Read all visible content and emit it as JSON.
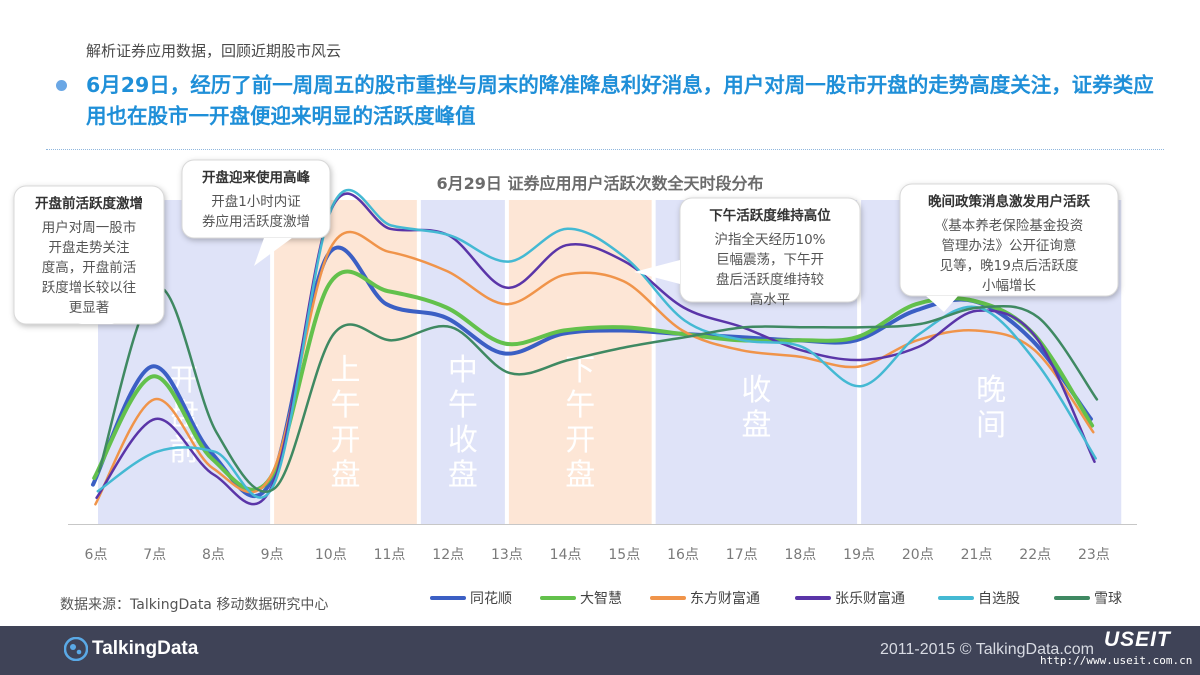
{
  "header": {
    "subtitle": "解析证券应用数据，回顾近期股市风云",
    "headline": "6月29日，经历了前一周周五的股市重挫与周末的降准降息利好消息，用户对周一股市开盘的走势高度关注，证券类应用也在股市一开盘便迎来明显的活跃度峰值"
  },
  "callouts": [
    {
      "title": "开盘前活跃度激增",
      "lines": [
        "用户对周一股市",
        "开盘走势关注",
        "度高，开盘前活",
        "跃度增长较以往",
        "更显著"
      ]
    },
    {
      "title": "开盘迎来使用高峰",
      "lines": [
        "开盘1小时内证",
        "券应用活跃度激增"
      ]
    },
    {
      "title": "下午活跃度维持高位",
      "lines": [
        "沪指全天经历10%",
        "巨幅震荡，下午开",
        "盘后活跃度维持较",
        "高水平"
      ]
    },
    {
      "title": "晚间政策消息激发用户活跃",
      "lines": [
        "《基本养老保险基金投资",
        "管理办法》公开征询意",
        "见等，晚19点后活跃度",
        "小幅增长"
      ]
    }
  ],
  "chart_data": {
    "type": "line",
    "title": "6月29日 证券应用用户活跃次数全天时段分布",
    "categories": [
      "6点",
      "7点",
      "8点",
      "9点",
      "10点",
      "11点",
      "12点",
      "13点",
      "14点",
      "15点",
      "16点",
      "17点",
      "18点",
      "19点",
      "20点",
      "21点",
      "22点",
      "23点"
    ],
    "ylim": [
      0,
      100
    ],
    "periods": [
      {
        "label": "开盘前",
        "from": 6,
        "to": 9,
        "color": "#dfe3f8"
      },
      {
        "label": "上午开盘",
        "from": 9,
        "to": 11.5,
        "color": "#fde6d6"
      },
      {
        "label": "中午收盘",
        "from": 11.5,
        "to": 13,
        "color": "#dfe3f8"
      },
      {
        "label": "下午开盘",
        "from": 13,
        "to": 15.5,
        "color": "#fde6d6"
      },
      {
        "label": "收盘",
        "from": 15.5,
        "to": 19,
        "color": "#dfe3f8"
      },
      {
        "label": "晚间",
        "from": 19,
        "to": 23.5,
        "color": "#dfe3f8"
      }
    ],
    "series": [
      {
        "name": "同花顺",
        "color": "#3b5fc4",
        "values": [
          12,
          48,
          22,
          12,
          82,
          67,
          63,
          52,
          58,
          59,
          58,
          57,
          56,
          56,
          65,
          68,
          56,
          32
        ]
      },
      {
        "name": "大智慧",
        "color": "#63c14c",
        "values": [
          14,
          45,
          20,
          14,
          73,
          71,
          66,
          55,
          59,
          60,
          58,
          56,
          56,
          57,
          67,
          68,
          58,
          30
        ]
      },
      {
        "name": "东方财富通",
        "color": "#f0944a",
        "values": [
          6,
          38,
          17,
          15,
          84,
          83,
          77,
          67,
          76,
          74,
          59,
          53,
          51,
          48,
          56,
          59,
          53,
          28
        ]
      },
      {
        "name": "张乐财富通",
        "color": "#5a35a8",
        "values": [
          8,
          32,
          15,
          12,
          96,
          90,
          88,
          72,
          85,
          80,
          66,
          60,
          53,
          50,
          54,
          65,
          57,
          19
        ]
      },
      {
        "name": "自选股",
        "color": "#44b9d3",
        "values": [
          10,
          22,
          22,
          12,
          97,
          91,
          88,
          80,
          90,
          81,
          62,
          56,
          54,
          42,
          58,
          66,
          49,
          20
        ]
      },
      {
        "name": "雪球",
        "color": "#3f8962",
        "values": [
          16,
          72,
          28,
          11,
          58,
          56,
          60,
          46,
          50,
          54,
          57,
          60,
          60,
          60,
          61,
          66,
          63,
          38
        ]
      }
    ]
  },
  "source": "数据来源：TalkingData 移动数据研究中心",
  "footer": {
    "logo_text": "TalkingData",
    "copyright": "2011-2015 © TalkingData.com",
    "watermark_brand": "USEIT",
    "watermark_url": "http://www.useit.com.cn"
  }
}
